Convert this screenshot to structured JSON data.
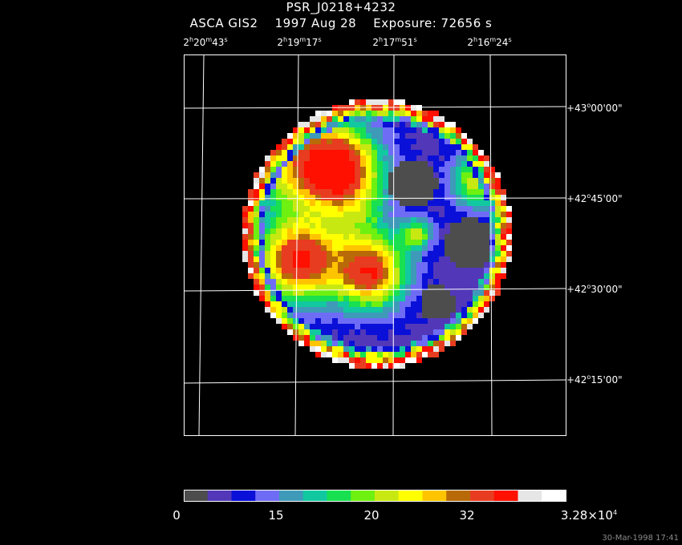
{
  "header": {
    "object": "PSR_J0218+4232",
    "instrument": "ASCA GIS2",
    "date": "1997 Aug 28",
    "exposure": "Exposure: 72656 s"
  },
  "ra_labels": [
    {
      "h": "2",
      "m": "20",
      "s": "43"
    },
    {
      "h": "2",
      "m": "19",
      "s": "17"
    },
    {
      "h": "2",
      "m": "17",
      "s": "51"
    },
    {
      "h": "2",
      "m": "16",
      "s": "24"
    }
  ],
  "dec_labels": [
    {
      "d": "+43",
      "m": "00",
      "s": "00"
    },
    {
      "d": "+42",
      "m": "45",
      "s": "00"
    },
    {
      "d": "+42",
      "m": "30",
      "s": "00"
    },
    {
      "d": "+42",
      "m": "15",
      "s": "00"
    }
  ],
  "colorbar": {
    "colors": [
      "#4d4d4d",
      "#5238b8",
      "#0a10d8",
      "#6e6cf5",
      "#3e9ab8",
      "#12c8a0",
      "#18e050",
      "#6ef010",
      "#c8e812",
      "#ffff00",
      "#ffc400",
      "#b86a08",
      "#e83c20",
      "#ff1000",
      "#e6e6e6",
      "#ffffff"
    ],
    "labels": [
      "0",
      "15",
      "20",
      "32"
    ],
    "max_label": "3.28×10",
    "max_exp": "4"
  },
  "timestamp": "30-Mar-1998 17:41"
}
